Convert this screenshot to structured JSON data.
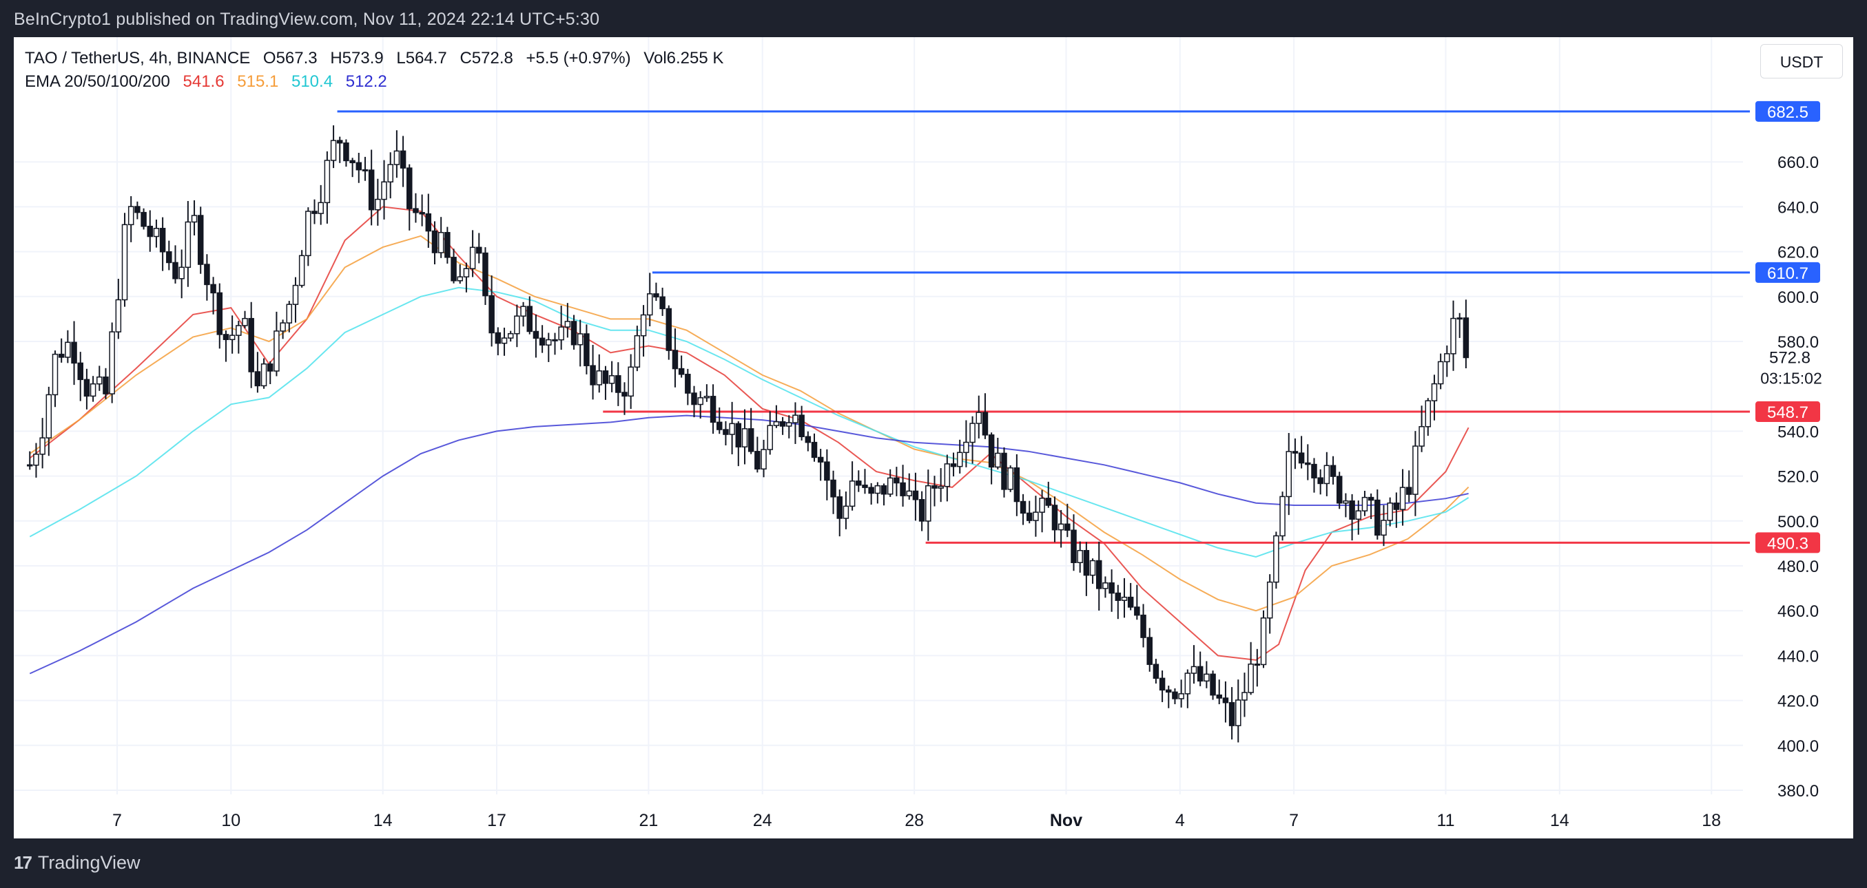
{
  "header": {
    "published": "BeInCrypto1 published on TradingView.com, Nov 11, 2024 22:14 UTC+5:30"
  },
  "legend": {
    "symbol": "TAO / TetherUS, 4h, BINANCE",
    "open": "O567.3",
    "high": "H573.9",
    "low": "L564.7",
    "close": "C572.8",
    "change": "+5.5 (+0.97%)",
    "volume": "Vol6.255 K",
    "ema_label": "EMA 20/50/100/200",
    "ema_values": [
      {
        "value": "541.6",
        "color": "#e53935"
      },
      {
        "value": "515.1",
        "color": "#f59d3a"
      },
      {
        "value": "510.4",
        "color": "#4de2ec"
      },
      {
        "value": "512.2",
        "color": "#3b3bd4"
      }
    ]
  },
  "currency_button": "USDT",
  "footer": {
    "brand": "TradingView",
    "brand_mark": "17"
  },
  "chart_data": {
    "type": "candlestick",
    "symbol": "TAO / TetherUS",
    "interval": "4h",
    "exchange": "BINANCE",
    "y_axis": {
      "min": 370,
      "max": 700,
      "ticks": [
        "660.0",
        "640.0",
        "620.0",
        "600.0",
        "580.0",
        "540.0",
        "520.0",
        "500.0",
        "480.0",
        "460.0",
        "440.0",
        "420.0",
        "400.0",
        "380.0"
      ]
    },
    "x_axis": {
      "labels": [
        {
          "label": "7",
          "day": 7
        },
        {
          "label": "10",
          "day": 10
        },
        {
          "label": "14",
          "day": 14
        },
        {
          "label": "17",
          "day": 17
        },
        {
          "label": "21",
          "day": 21
        },
        {
          "label": "24",
          "day": 24
        },
        {
          "label": "28",
          "day": 28
        },
        {
          "label": "Nov",
          "day": 32
        },
        {
          "label": "4",
          "day": 35
        },
        {
          "label": "7",
          "day": 38
        },
        {
          "label": "11",
          "day": 42
        },
        {
          "label": "14",
          "day": 45
        },
        {
          "label": "18",
          "day": 49
        }
      ],
      "start_day": 4.7,
      "end_day": 51.5
    },
    "current_price": {
      "value": "572.8",
      "countdown": "03:15:02"
    },
    "levels": [
      {
        "value": 682.5,
        "label": "682.5",
        "color": "#2962ff",
        "from_day": 12.8
      },
      {
        "value": 610.7,
        "label": "610.7",
        "color": "#2962ff",
        "from_day": 21.1
      },
      {
        "value": 548.7,
        "label": "548.7",
        "color": "#f23645",
        "from_day": 19.8
      },
      {
        "value": 490.3,
        "label": "490.3",
        "color": "#f23645",
        "from_day": 28.3
      }
    ],
    "anchors": [
      [
        4.7,
        525
      ],
      [
        5.0,
        540
      ],
      [
        5.4,
        575
      ],
      [
        5.8,
        580
      ],
      [
        6.2,
        560
      ],
      [
        6.7,
        556
      ],
      [
        7.0,
        600
      ],
      [
        7.3,
        640
      ],
      [
        7.7,
        632
      ],
      [
        8.2,
        620
      ],
      [
        8.6,
        610
      ],
      [
        9.0,
        635
      ],
      [
        9.5,
        600
      ],
      [
        9.9,
        580
      ],
      [
        10.3,
        590
      ],
      [
        10.7,
        558
      ],
      [
        11.2,
        580
      ],
      [
        11.6,
        600
      ],
      [
        12.0,
        635
      ],
      [
        12.4,
        650
      ],
      [
        12.8,
        672
      ],
      [
        13.3,
        660
      ],
      [
        13.8,
        640
      ],
      [
        14.3,
        665
      ],
      [
        14.7,
        640
      ],
      [
        15.2,
        630
      ],
      [
        15.6,
        620
      ],
      [
        16.0,
        600
      ],
      [
        16.4,
        628
      ],
      [
        16.8,
        585
      ],
      [
        17.3,
        585
      ],
      [
        17.7,
        590
      ],
      [
        18.2,
        585
      ],
      [
        18.6,
        580
      ],
      [
        19.1,
        585
      ],
      [
        19.5,
        566
      ],
      [
        20.0,
        558
      ],
      [
        20.5,
        562
      ],
      [
        20.9,
        600
      ],
      [
        21.3,
        593
      ],
      [
        21.7,
        570
      ],
      [
        22.1,
        555
      ],
      [
        22.6,
        553
      ],
      [
        23.0,
        545
      ],
      [
        23.5,
        535
      ],
      [
        23.9,
        525
      ],
      [
        24.3,
        540
      ],
      [
        24.7,
        550
      ],
      [
        25.2,
        540
      ],
      [
        25.6,
        525
      ],
      [
        26.0,
        500
      ],
      [
        26.4,
        520
      ],
      [
        26.8,
        508
      ],
      [
        27.2,
        515
      ],
      [
        27.7,
        518
      ],
      [
        28.1,
        500
      ],
      [
        28.5,
        515
      ],
      [
        28.9,
        525
      ],
      [
        29.3,
        540
      ],
      [
        29.7,
        552
      ],
      [
        30.0,
        530
      ],
      [
        30.4,
        520
      ],
      [
        30.8,
        510
      ],
      [
        31.2,
        503
      ],
      [
        31.6,
        505
      ],
      [
        32.0,
        490
      ],
      [
        32.4,
        482
      ],
      [
        32.8,
        474
      ],
      [
        33.2,
        465
      ],
      [
        33.6,
        462
      ],
      [
        34.0,
        450
      ],
      [
        34.4,
        432
      ],
      [
        34.8,
        424
      ],
      [
        35.2,
        432
      ],
      [
        35.6,
        428
      ],
      [
        36.0,
        420
      ],
      [
        36.4,
        410
      ],
      [
        36.8,
        430
      ],
      [
        37.2,
        450
      ],
      [
        37.6,
        495
      ],
      [
        37.9,
        530
      ],
      [
        38.3,
        532
      ],
      [
        38.7,
        522
      ],
      [
        39.1,
        515
      ],
      [
        39.5,
        508
      ],
      [
        39.9,
        505
      ],
      [
        40.3,
        498
      ],
      [
        40.7,
        505
      ],
      [
        41.1,
        520
      ],
      [
        41.4,
        542
      ],
      [
        41.7,
        560
      ],
      [
        42.0,
        578
      ],
      [
        42.3,
        592
      ],
      [
        42.6,
        573
      ]
    ],
    "ema_series": [
      {
        "name": "EMA 20",
        "color": "#e53935",
        "points": [
          [
            4.7,
            528
          ],
          [
            6,
            545
          ],
          [
            7.5,
            568
          ],
          [
            9,
            592
          ],
          [
            10,
            595
          ],
          [
            11,
            570
          ],
          [
            12,
            590
          ],
          [
            13,
            625
          ],
          [
            14,
            640
          ],
          [
            15,
            638
          ],
          [
            16,
            618
          ],
          [
            17,
            600
          ],
          [
            18,
            592
          ],
          [
            19,
            585
          ],
          [
            20,
            575
          ],
          [
            21,
            578
          ],
          [
            22,
            575
          ],
          [
            23,
            565
          ],
          [
            24,
            550
          ],
          [
            25,
            545
          ],
          [
            26,
            535
          ],
          [
            27,
            522
          ],
          [
            28,
            518
          ],
          [
            29,
            515
          ],
          [
            30,
            530
          ],
          [
            31,
            516
          ],
          [
            32,
            502
          ],
          [
            33,
            490
          ],
          [
            34,
            470
          ],
          [
            35,
            455
          ],
          [
            36,
            440
          ],
          [
            37,
            438
          ],
          [
            37.6,
            445
          ],
          [
            38.3,
            478
          ],
          [
            39,
            495
          ],
          [
            40,
            502
          ],
          [
            41,
            505
          ],
          [
            42,
            522
          ],
          [
            42.6,
            541.6
          ]
        ]
      },
      {
        "name": "EMA 50",
        "color": "#f59d3a",
        "points": [
          [
            4.7,
            530
          ],
          [
            6,
            545
          ],
          [
            7.5,
            565
          ],
          [
            9,
            582
          ],
          [
            10,
            586
          ],
          [
            11,
            580
          ],
          [
            12,
            590
          ],
          [
            13,
            613
          ],
          [
            14,
            622
          ],
          [
            15,
            627
          ],
          [
            16,
            615
          ],
          [
            17,
            608
          ],
          [
            18,
            600
          ],
          [
            19,
            595
          ],
          [
            20,
            590
          ],
          [
            21,
            590
          ],
          [
            22,
            585
          ],
          [
            23,
            575
          ],
          [
            24,
            565
          ],
          [
            25,
            558
          ],
          [
            26,
            548
          ],
          [
            27,
            540
          ],
          [
            28,
            532
          ],
          [
            29,
            528
          ],
          [
            30,
            526
          ],
          [
            31,
            518
          ],
          [
            32,
            507
          ],
          [
            33,
            495
          ],
          [
            34,
            485
          ],
          [
            35,
            474
          ],
          [
            36,
            465
          ],
          [
            37,
            460
          ],
          [
            38,
            466
          ],
          [
            39,
            480
          ],
          [
            40,
            485
          ],
          [
            41,
            492
          ],
          [
            42,
            505
          ],
          [
            42.6,
            515.1
          ]
        ]
      },
      {
        "name": "EMA 100",
        "color": "#4de2ec",
        "points": [
          [
            4.7,
            493
          ],
          [
            6,
            505
          ],
          [
            7.5,
            520
          ],
          [
            9,
            540
          ],
          [
            10,
            552
          ],
          [
            11,
            555
          ],
          [
            12,
            568
          ],
          [
            13,
            584
          ],
          [
            14,
            592
          ],
          [
            15,
            600
          ],
          [
            16,
            604
          ],
          [
            17,
            602
          ],
          [
            18,
            598
          ],
          [
            19,
            590
          ],
          [
            20,
            585
          ],
          [
            21,
            585
          ],
          [
            22,
            580
          ],
          [
            23,
            572
          ],
          [
            24,
            563
          ],
          [
            25,
            555
          ],
          [
            26,
            547
          ],
          [
            27,
            540
          ],
          [
            28,
            533
          ],
          [
            29,
            528
          ],
          [
            30,
            523
          ],
          [
            31,
            518
          ],
          [
            32,
            512
          ],
          [
            33,
            506
          ],
          [
            34,
            500
          ],
          [
            35,
            494
          ],
          [
            36,
            488
          ],
          [
            37,
            484
          ],
          [
            38,
            490
          ],
          [
            39,
            495
          ],
          [
            40,
            497
          ],
          [
            41,
            500
          ],
          [
            42,
            504
          ],
          [
            42.6,
            510.4
          ]
        ]
      },
      {
        "name": "EMA 200",
        "color": "#3b3bd4",
        "points": [
          [
            4.7,
            432
          ],
          [
            6,
            442
          ],
          [
            7.5,
            455
          ],
          [
            9,
            470
          ],
          [
            10,
            478
          ],
          [
            11,
            486
          ],
          [
            12,
            496
          ],
          [
            13,
            508
          ],
          [
            14,
            520
          ],
          [
            15,
            530
          ],
          [
            16,
            536
          ],
          [
            17,
            540
          ],
          [
            18,
            542
          ],
          [
            19,
            543
          ],
          [
            20,
            544
          ],
          [
            21,
            546
          ],
          [
            22,
            547
          ],
          [
            23,
            546
          ],
          [
            24,
            545
          ],
          [
            25,
            543
          ],
          [
            26,
            540
          ],
          [
            27,
            537
          ],
          [
            28,
            535
          ],
          [
            29,
            534
          ],
          [
            30,
            533
          ],
          [
            31,
            531
          ],
          [
            32,
            528
          ],
          [
            33,
            525
          ],
          [
            34,
            521
          ],
          [
            35,
            517
          ],
          [
            36,
            512
          ],
          [
            37,
            508
          ],
          [
            38,
            507
          ],
          [
            39,
            507
          ],
          [
            40,
            507
          ],
          [
            41,
            508
          ],
          [
            42,
            510
          ],
          [
            42.6,
            512.2
          ]
        ]
      }
    ]
  }
}
